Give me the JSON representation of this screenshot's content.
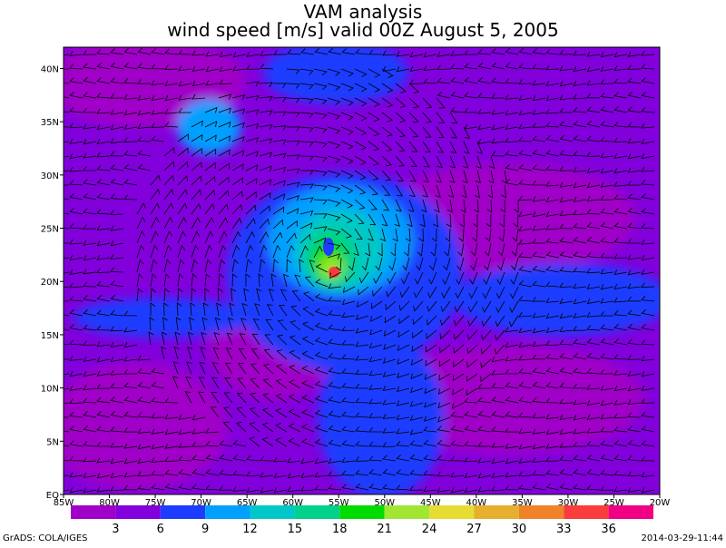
{
  "header": {
    "title": "VAM analysis",
    "subtitle": "wind speed [m/s] valid 00Z August 5, 2005"
  },
  "map": {
    "lon_labels": [
      "85W",
      "80W",
      "75W",
      "70W",
      "65W",
      "60W",
      "55W",
      "50W",
      "45W",
      "40W",
      "35W",
      "30W",
      "25W",
      "20W"
    ],
    "lat_labels": [
      "EQ",
      "5N",
      "10N",
      "15N",
      "20N",
      "25N",
      "30N",
      "35N",
      "40N"
    ]
  },
  "colorbar": {
    "labels": [
      3,
      6,
      9,
      12,
      15,
      18,
      21,
      24,
      27,
      30,
      33,
      36
    ],
    "colors": [
      "#a000c8",
      "#8200dc",
      "#1e3cff",
      "#00a0ff",
      "#00c8c8",
      "#00d28c",
      "#00dc00",
      "#a0e632",
      "#e6dc32",
      "#e6af2d",
      "#f08228",
      "#fa3c3c",
      "#f00082"
    ]
  },
  "footer": {
    "left": "GrADS: COLA/IGES",
    "right": "2014-03-29-11:44"
  }
}
